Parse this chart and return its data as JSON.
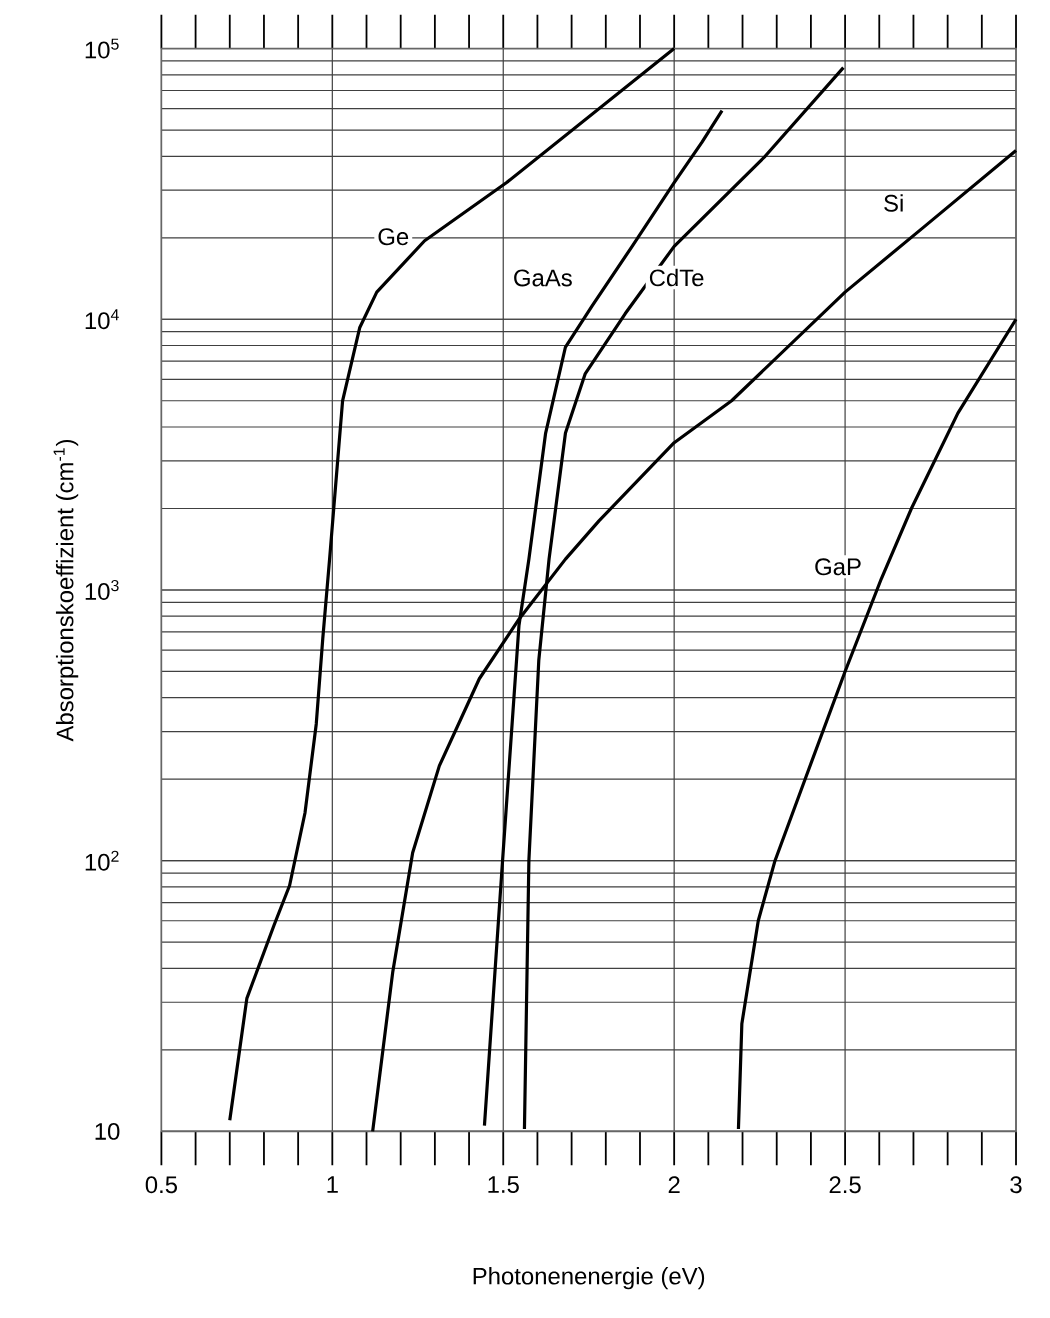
{
  "chart_data": {
    "type": "line",
    "xlabel": "Photonenenergie (eV)",
    "ylabel": "Absorptionskoeffizient (cm$^{-1}$)",
    "log": "y",
    "grid": true,
    "marker": "none",
    "line_style": "solid",
    "xlim": [
      0.5,
      3
    ],
    "ylim": [
      10,
      100000
    ],
    "xticks": [
      0.5,
      1,
      1.5,
      2,
      2.5,
      3
    ],
    "yticks": [
      10,
      {
        "value": 100,
        "label": "10$^{2}$"
      },
      {
        "value": 1000,
        "label": "10$^{3}$"
      },
      {
        "value": 10000,
        "label": "10$^{4}$"
      },
      {
        "value": 100000,
        "label": "10$^{5}$"
      }
    ],
    "series": [
      {
        "name": "Ge",
        "color": "#000000",
        "x": [
          0.7,
          0.75,
          0.83,
          0.875,
          0.92,
          0.953,
          0.972,
          0.992,
          1.03,
          1.08,
          1.13,
          1.27,
          1.51,
          2.0
        ],
        "values": [
          11,
          31,
          58,
          81,
          150,
          320,
          660,
          1300,
          5000,
          9300,
          12600,
          19500,
          32000,
          100000
        ]
      },
      {
        "name": "GaAs",
        "color": "#000000",
        "x": [
          1.445,
          1.498,
          1.546,
          1.575,
          1.624,
          1.682,
          1.76,
          1.877,
          2.0,
          2.081,
          2.14
        ],
        "values": [
          10.5,
          100,
          740,
          1300,
          3800,
          7900,
          11200,
          18600,
          32000,
          45000,
          59000
        ]
      },
      {
        "name": "CdTe",
        "color": "#000000",
        "x": [
          1.562,
          1.575,
          1.604,
          1.634,
          1.682,
          1.74,
          1.857,
          2.0,
          2.266,
          2.495
        ],
        "values": [
          10.2,
          100,
          550,
          1300,
          3800,
          6300,
          10500,
          18600,
          40000,
          85000
        ]
      },
      {
        "name": "Si",
        "color": "#000000",
        "x": [
          1.118,
          1.177,
          1.235,
          1.313,
          1.43,
          1.546,
          1.682,
          1.78,
          2.0,
          2.168,
          2.5,
          2.73,
          3.0
        ],
        "values": [
          10,
          39,
          107,
          224,
          470,
          780,
          1300,
          1800,
          3500,
          5000,
          12600,
          21900,
          42000
        ]
      },
      {
        "name": "GaP",
        "color": "#000000",
        "x": [
          2.188,
          2.198,
          2.246,
          2.295,
          2.383,
          2.5,
          2.606,
          2.694,
          2.83,
          3.0
        ],
        "values": [
          10.2,
          25,
          60,
          100,
          200,
          500,
          1100,
          2000,
          4500,
          10000
        ]
      }
    ]
  }
}
